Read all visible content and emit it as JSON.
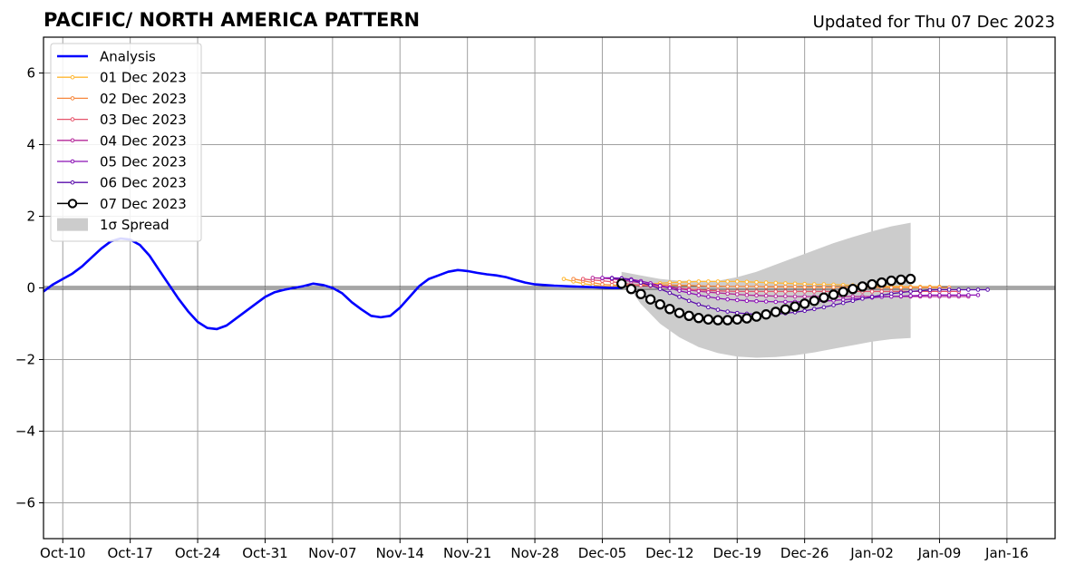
{
  "chart_data": {
    "type": "line",
    "title": "PACIFIC/ NORTH AMERICA PATTERN",
    "subtitle": "Updated for Thu 07 Dec 2023",
    "x_ticks": [
      "Oct-10",
      "Oct-17",
      "Oct-24",
      "Oct-31",
      "Nov-07",
      "Nov-14",
      "Nov-21",
      "Nov-28",
      "Dec-05",
      "Dec-12",
      "Dec-19",
      "Dec-26",
      "Jan-02",
      "Jan-09",
      "Jan-16"
    ],
    "x_tick_days": [
      0,
      7,
      14,
      21,
      28,
      35,
      42,
      49,
      56,
      63,
      70,
      77,
      84,
      91,
      98
    ],
    "xlim_days": [
      -2,
      103
    ],
    "y_ticks": [
      "−6",
      "−4",
      "−2",
      "0",
      "2",
      "4",
      "6"
    ],
    "y_tick_values": [
      -6,
      -4,
      -2,
      0,
      2,
      4,
      6
    ],
    "ylim": [
      -7,
      7
    ],
    "grid": true,
    "legend_position": "upper-left",
    "analysis": {
      "name": "Analysis",
      "color": "#0000ff",
      "x": [
        -2,
        -1,
        0,
        1,
        2,
        3,
        4,
        5,
        6,
        7,
        8,
        9,
        10,
        11,
        12,
        13,
        14,
        15,
        16,
        17,
        18,
        19,
        20,
        21,
        22,
        23,
        24,
        25,
        26,
        27,
        28,
        29,
        30,
        31,
        32,
        33,
        34,
        35,
        36,
        37,
        38,
        39,
        40,
        41,
        42,
        43,
        44,
        45,
        46,
        47,
        48,
        49,
        50,
        51,
        52,
        53,
        54,
        55,
        56,
        57,
        58
      ],
      "values": [
        -0.1,
        0.1,
        0.25,
        0.4,
        0.6,
        0.85,
        1.1,
        1.3,
        1.38,
        1.35,
        1.2,
        0.9,
        0.5,
        0.1,
        -0.3,
        -0.65,
        -0.95,
        -1.12,
        -1.15,
        -1.05,
        -0.85,
        -0.65,
        -0.45,
        -0.25,
        -0.12,
        -0.05,
        0.0,
        0.05,
        0.12,
        0.08,
        0.0,
        -0.15,
        -0.4,
        -0.6,
        -0.78,
        -0.82,
        -0.78,
        -0.55,
        -0.25,
        0.05,
        0.25,
        0.35,
        0.45,
        0.5,
        0.47,
        0.42,
        0.38,
        0.35,
        0.3,
        0.22,
        0.15,
        0.1,
        0.08,
        0.06,
        0.05,
        0.04,
        0.03,
        0.02,
        0.01,
        0.0,
        0.0
      ]
    },
    "forecasts": [
      {
        "name": "01 Dec 2023",
        "color": "#ffb732",
        "start": 52,
        "values": [
          0.25,
          0.18,
          0.12,
          0.08,
          0.05,
          0.04,
          0.05,
          0.07,
          0.09,
          0.11,
          0.13,
          0.15,
          0.16,
          0.17,
          0.18,
          0.18,
          0.18,
          0.18,
          0.18,
          0.17,
          0.16,
          0.15,
          0.14,
          0.13,
          0.12,
          0.11,
          0.1,
          0.1,
          0.09,
          0.08,
          0.07,
          0.06,
          0.05,
          0.05,
          0.04,
          0.04,
          0.03,
          0.03,
          0.03,
          0.03
        ]
      },
      {
        "name": "02 Dec 2023",
        "color": "#f7883e",
        "start": 53,
        "values": [
          0.25,
          0.2,
          0.15,
          0.1,
          0.08,
          0.07,
          0.07,
          0.08,
          0.08,
          0.08,
          0.08,
          0.07,
          0.07,
          0.06,
          0.05,
          0.05,
          0.04,
          0.04,
          0.04,
          0.04,
          0.03,
          0.03,
          0.03,
          0.03,
          0.02,
          0.02,
          0.02,
          0.02,
          0.02,
          0.02,
          0.02,
          0.01,
          0.01,
          0.01,
          0.01,
          0.01,
          0.01,
          0.01,
          0.01,
          0.01
        ]
      },
      {
        "name": "03 Dec 2023",
        "color": "#e6546b",
        "start": 54,
        "values": [
          0.25,
          0.22,
          0.2,
          0.17,
          0.14,
          0.1,
          0.07,
          0.05,
          0.03,
          0.01,
          -0.01,
          -0.03,
          -0.05,
          -0.07,
          -0.08,
          -0.09,
          -0.1,
          -0.1,
          -0.1,
          -0.1,
          -0.1,
          -0.1,
          -0.1,
          -0.1,
          -0.1,
          -0.1,
          -0.1,
          -0.1,
          -0.1,
          -0.1,
          -0.1,
          -0.1,
          -0.1,
          -0.1,
          -0.1,
          -0.1,
          -0.1,
          -0.1,
          -0.1,
          -0.1
        ]
      },
      {
        "name": "04 Dec 2023",
        "color": "#b5279a",
        "start": 55,
        "values": [
          0.28,
          0.27,
          0.25,
          0.22,
          0.18,
          0.14,
          0.1,
          0.06,
          0.02,
          -0.02,
          -0.06,
          -0.09,
          -0.12,
          -0.14,
          -0.16,
          -0.18,
          -0.2,
          -0.21,
          -0.22,
          -0.23,
          -0.23,
          -0.24,
          -0.24,
          -0.24,
          -0.24,
          -0.24,
          -0.24,
          -0.24,
          -0.24,
          -0.24,
          -0.24,
          -0.24,
          -0.24,
          -0.24,
          -0.24,
          -0.24,
          -0.24,
          -0.24,
          -0.24,
          -0.24
        ]
      },
      {
        "name": "05 Dec 2023",
        "color": "#8b10b5",
        "start": 56,
        "values": [
          0.28,
          0.28,
          0.27,
          0.24,
          0.19,
          0.13,
          0.06,
          -0.01,
          -0.08,
          -0.14,
          -0.2,
          -0.25,
          -0.29,
          -0.32,
          -0.34,
          -0.36,
          -0.37,
          -0.38,
          -0.39,
          -0.39,
          -0.39,
          -0.39,
          -0.38,
          -0.37,
          -0.35,
          -0.33,
          -0.31,
          -0.29,
          -0.27,
          -0.25,
          -0.24,
          -0.23,
          -0.22,
          -0.21,
          -0.2,
          -0.2,
          -0.2,
          -0.2,
          -0.2,
          -0.2
        ]
      },
      {
        "name": "06 Dec 2023",
        "color": "#5a0dab",
        "start": 57,
        "values": [
          0.27,
          0.26,
          0.22,
          0.15,
          0.07,
          -0.03,
          -0.14,
          -0.25,
          -0.36,
          -0.46,
          -0.54,
          -0.61,
          -0.66,
          -0.7,
          -0.72,
          -0.74,
          -0.74,
          -0.73,
          -0.71,
          -0.68,
          -0.64,
          -0.59,
          -0.54,
          -0.48,
          -0.42,
          -0.36,
          -0.3,
          -0.25,
          -0.2,
          -0.16,
          -0.13,
          -0.1,
          -0.08,
          -0.06,
          -0.05,
          -0.05,
          -0.05,
          -0.05,
          -0.05,
          -0.05
        ]
      },
      {
        "name": "07 Dec 2023",
        "color": "#000000",
        "start": 58,
        "values": [
          0.12,
          -0.03,
          -0.17,
          -0.32,
          -0.46,
          -0.59,
          -0.7,
          -0.78,
          -0.84,
          -0.88,
          -0.9,
          -0.9,
          -0.88,
          -0.85,
          -0.8,
          -0.74,
          -0.67,
          -0.6,
          -0.52,
          -0.44,
          -0.36,
          -0.27,
          -0.19,
          -0.11,
          -0.03,
          0.04,
          0.1,
          0.15,
          0.2,
          0.23,
          0.25
        ]
      }
    ],
    "spread": {
      "name": "1σ Spread",
      "color": "#cccccc",
      "x": [
        58,
        60,
        62,
        64,
        66,
        68,
        70,
        72,
        74,
        76,
        78,
        80,
        82,
        84,
        86,
        88
      ],
      "upper": [
        0.45,
        0.35,
        0.25,
        0.2,
        0.2,
        0.2,
        0.3,
        0.45,
        0.65,
        0.85,
        1.05,
        1.25,
        1.42,
        1.58,
        1.72,
        1.82
      ],
      "lower": [
        0.3,
        -0.45,
        -1.0,
        -1.38,
        -1.65,
        -1.82,
        -1.92,
        -1.95,
        -1.93,
        -1.88,
        -1.8,
        -1.7,
        -1.6,
        -1.5,
        -1.43,
        -1.4
      ]
    },
    "legend": [
      {
        "label": "Analysis",
        "style": "thick",
        "color": "#0000ff"
      },
      {
        "label": "01 Dec 2023",
        "style": "marker",
        "color": "#ffb732"
      },
      {
        "label": "02 Dec 2023",
        "style": "marker",
        "color": "#f7883e"
      },
      {
        "label": "03 Dec 2023",
        "style": "marker",
        "color": "#e6546b"
      },
      {
        "label": "04 Dec 2023",
        "style": "marker",
        "color": "#b5279a"
      },
      {
        "label": "05 Dec 2023",
        "style": "marker",
        "color": "#8b10b5"
      },
      {
        "label": "06 Dec 2023",
        "style": "marker",
        "color": "#5a0dab"
      },
      {
        "label": "07 Dec 2023",
        "style": "circle",
        "color": "#000000"
      },
      {
        "label": "1σ Spread",
        "style": "patch",
        "color": "#cccccc"
      }
    ]
  }
}
